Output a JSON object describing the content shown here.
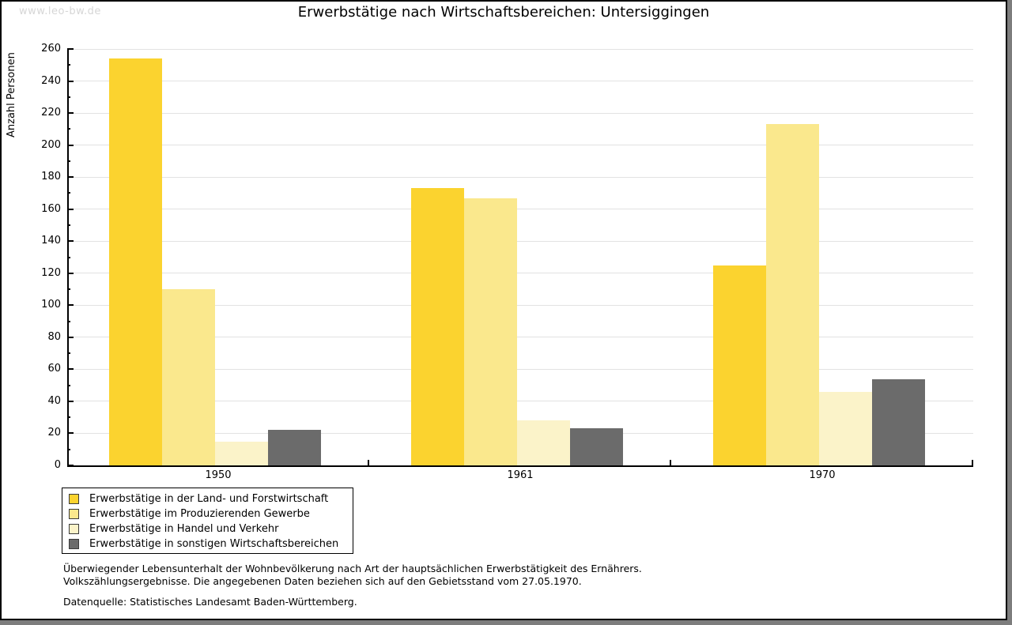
{
  "page": {
    "watermark": "www.leo-bw.de",
    "background": "#ffffff",
    "frame_border_color": "#000000",
    "shadow_color": "#7d7d7d"
  },
  "chart_data": {
    "type": "bar",
    "title": "Erwerbstätige nach Wirtschaftsbereichen: Untersiggingen",
    "ylabel": "Anzahl Personen",
    "xlabel": "",
    "categories": [
      "1950",
      "1961",
      "1970"
    ],
    "series": [
      {
        "name": "Erwerbstätige in der Land- und Forstwirtschaft",
        "color": "#fbd32f",
        "values": [
          254,
          173,
          125
        ]
      },
      {
        "name": "Erwerbstätige im Produzierenden Gewerbe",
        "color": "#fae88d",
        "values": [
          110,
          167,
          213
        ]
      },
      {
        "name": "Erwerbstätige in Handel und Verkehr",
        "color": "#fbf3c9",
        "values": [
          15,
          28,
          46
        ]
      },
      {
        "name": "Erwerbstätige in sonstigen Wirtschaftsbereichen",
        "color": "#6b6b6b",
        "values": [
          22,
          23,
          54
        ]
      }
    ],
    "ylim": [
      0,
      260
    ],
    "yticks": [
      0,
      20,
      40,
      60,
      80,
      100,
      120,
      140,
      160,
      180,
      200,
      220,
      240,
      260
    ],
    "yminor_step": 10,
    "grid": true,
    "gridline_color": "#e2e2e2",
    "axis_color": "#000000",
    "legend_position": "bottom-left"
  },
  "footnotes": {
    "line1": "Überwiegender Lebensunterhalt der Wohnbevölkerung nach Art der hauptsächlichen Erwerbstätigkeit des Ernährers.",
    "line2": "Volkszählungsergebnisse. Die angegebenen Daten beziehen sich auf den Gebietsstand vom 27.05.1970.",
    "source": "Datenquelle: Statistisches Landesamt Baden-Württemberg."
  }
}
